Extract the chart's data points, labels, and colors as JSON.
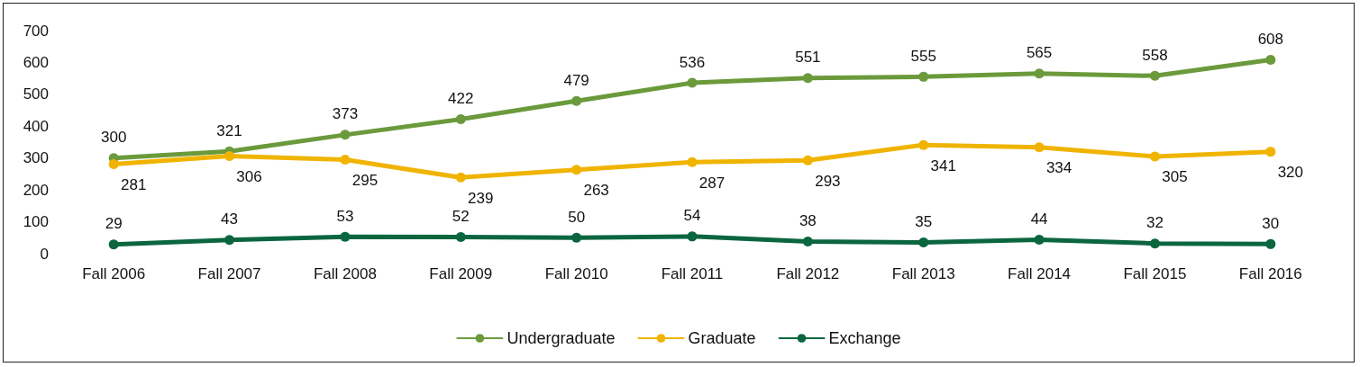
{
  "chart_data": {
    "type": "line",
    "categories": [
      "Fall 2006",
      "Fall 2007",
      "Fall 2008",
      "Fall 2009",
      "Fall 2010",
      "Fall 2011",
      "Fall 2012",
      "Fall 2013",
      "Fall 2014",
      "Fall 2015",
      "Fall 2016"
    ],
    "series": [
      {
        "name": "Undergraduate",
        "color": "#6b9a3c",
        "values": [
          300,
          321,
          373,
          422,
          479,
          536,
          551,
          555,
          565,
          558,
          608
        ]
      },
      {
        "name": "Graduate",
        "color": "#f0b400",
        "values": [
          281,
          306,
          295,
          239,
          263,
          287,
          293,
          341,
          334,
          305,
          320
        ]
      },
      {
        "name": "Exchange",
        "color": "#0b6640",
        "values": [
          29,
          43,
          53,
          52,
          50,
          54,
          38,
          35,
          44,
          32,
          30
        ]
      }
    ],
    "ylim": [
      0,
      700
    ],
    "yticks": [
      0,
      100,
      200,
      300,
      400,
      500,
      600,
      700
    ],
    "grid": false,
    "legend": "bottom",
    "marker": "circle",
    "line_style": "solid",
    "data_labels": true
  }
}
